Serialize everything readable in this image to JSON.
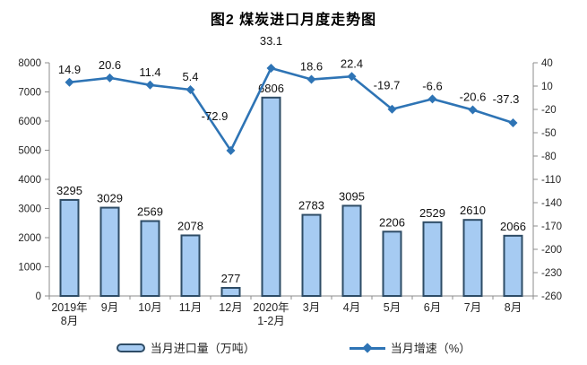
{
  "title": "图2 煤炭进口月度走势图",
  "chart_data": {
    "type": "bar+line combo",
    "title": "图2 煤炭进口月度走势图",
    "categories": [
      "2019年\n8月",
      "9月",
      "10月",
      "11月",
      "12月",
      "2020年\n1-2月",
      "3月",
      "4月",
      "5月",
      "6月",
      "7月",
      "8月"
    ],
    "series": [
      {
        "name": "当月进口量（万吨）",
        "type": "bar",
        "axis": "left",
        "values": [
          3295,
          3029,
          2569,
          2078,
          277,
          6806,
          2783,
          3095,
          2206,
          2529,
          2610,
          2066
        ]
      },
      {
        "name": "当月增速（%）",
        "type": "line",
        "axis": "right",
        "values": [
          14.9,
          20.6,
          11.4,
          5.4,
          -72.9,
          33.1,
          18.6,
          22.4,
          -19.7,
          -6.6,
          -20.6,
          -37.3
        ]
      }
    ],
    "left_axis": {
      "min": 0,
      "max": 8000,
      "step": 1000,
      "ticks": [
        8000,
        7000,
        6000,
        5000,
        4000,
        3000,
        2000,
        1000,
        0
      ]
    },
    "right_axis": {
      "min": -260,
      "max": 40,
      "step": 30,
      "ticks": [
        40,
        10,
        -20,
        -50,
        -80,
        -110,
        -140,
        -170,
        -200,
        -230,
        -260
      ]
    },
    "grid": false,
    "data_labels_visible": true,
    "legend_position": "bottom"
  },
  "colors": {
    "bar_fill": "#A6CBF2",
    "bar_stroke": "#2E4C66",
    "line": "#2E74B5",
    "axis": "#8C8C8C",
    "label_text": "#111111"
  }
}
